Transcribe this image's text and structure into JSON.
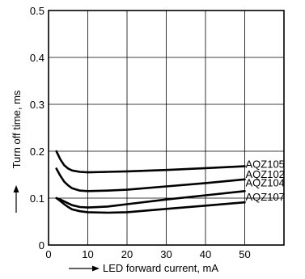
{
  "chart_data": {
    "type": "line",
    "title": "",
    "xlabel": "LED forward current, mA",
    "ylabel": "Turn off time, ms",
    "xlim": [
      0,
      60
    ],
    "ylim": [
      0,
      0.5
    ],
    "xticks": [
      "0",
      "10",
      "20",
      "30",
      "40",
      "50"
    ],
    "yticks": [
      "0",
      "0.1",
      "0.2",
      "0.3",
      "0.4",
      "0.5"
    ],
    "grid": true,
    "series": [
      {
        "name": "AQZ105",
        "x": [
          2,
          3,
          4,
          5,
          6,
          8,
          10,
          15,
          20,
          30,
          40,
          50
        ],
        "y": [
          0.2,
          0.183,
          0.17,
          0.163,
          0.159,
          0.156,
          0.155,
          0.156,
          0.157,
          0.16,
          0.164,
          0.168
        ]
      },
      {
        "name": "AQZ102",
        "x": [
          2,
          3,
          4,
          5,
          6,
          8,
          10,
          15,
          20,
          30,
          40,
          50
        ],
        "y": [
          0.163,
          0.148,
          0.135,
          0.127,
          0.121,
          0.116,
          0.115,
          0.116,
          0.118,
          0.125,
          0.132,
          0.14
        ]
      },
      {
        "name": "AQZ104",
        "x": [
          2,
          3,
          4,
          5,
          6,
          8,
          10,
          15,
          20,
          30,
          40,
          50
        ],
        "y": [
          0.1,
          0.097,
          0.093,
          0.089,
          0.085,
          0.081,
          0.08,
          0.082,
          0.087,
          0.097,
          0.106,
          0.115
        ]
      },
      {
        "name": "AQZ107",
        "x": [
          2,
          3,
          4,
          5,
          6,
          8,
          10,
          15,
          20,
          30,
          40,
          50
        ],
        "y": [
          0.1,
          0.094,
          0.087,
          0.081,
          0.076,
          0.072,
          0.07,
          0.069,
          0.07,
          0.077,
          0.084,
          0.091
        ]
      }
    ]
  }
}
